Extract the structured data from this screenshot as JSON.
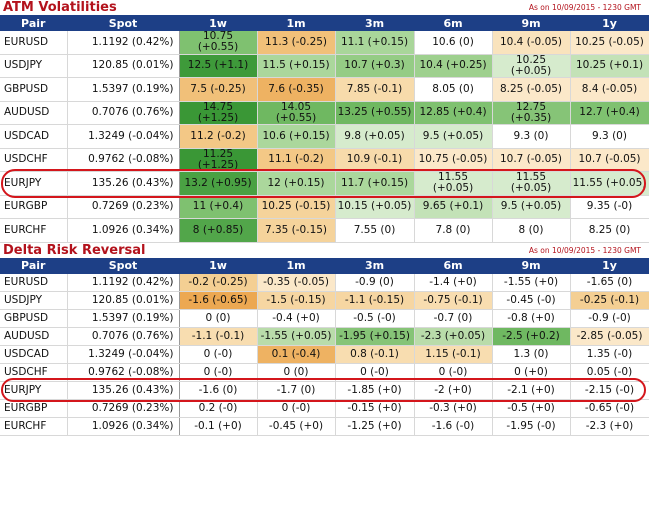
{
  "atm": {
    "title": "ATM Volatilities",
    "as_of": "As on 10/09/2015 - 1230 GMT",
    "headers": [
      "Pair",
      "Spot",
      "1w",
      "1m",
      "3m",
      "6m",
      "9m",
      "1y"
    ],
    "rows": [
      {
        "pair": "EURUSD",
        "spot": "1.1192 (0.42%)",
        "cells": [
          {
            "t": "10.75 (+0.55)",
            "c": "#7fc170"
          },
          {
            "t": "11.3 (-0.25)",
            "c": "#f1c079"
          },
          {
            "t": "11.1 (+0.15)",
            "c": "#a9d69a"
          },
          {
            "t": "10.6 (0)",
            "c": "#ffffff"
          },
          {
            "t": "10.4 (-0.05)",
            "c": "#f9e3bd"
          },
          {
            "t": "10.25 (-0.05)",
            "c": "#fbe8c9"
          }
        ]
      },
      {
        "pair": "USDJPY",
        "spot": "120.85 (0.01%)",
        "cells": [
          {
            "t": "12.5 (+1.1)",
            "c": "#3e9a3a"
          },
          {
            "t": "11.5 (+0.15)",
            "c": "#abd79c"
          },
          {
            "t": "10.7 (+0.3)",
            "c": "#95cc85"
          },
          {
            "t": "10.4 (+0.25)",
            "c": "#9ed08e"
          },
          {
            "t": "10.25 (+0.05)",
            "c": "#d6ebcd"
          },
          {
            "t": "10.25 (+0.1)",
            "c": "#c3e2b7"
          }
        ]
      },
      {
        "pair": "GBPUSD",
        "spot": "1.5397 (0.19%)",
        "cells": [
          {
            "t": "7.5 (-0.25)",
            "c": "#f1c079"
          },
          {
            "t": "7.6 (-0.35)",
            "c": "#eeb262"
          },
          {
            "t": "7.85 (-0.1)",
            "c": "#f7dbab"
          },
          {
            "t": "8.05 (0)",
            "c": "#ffffff"
          },
          {
            "t": "8.25 (-0.05)",
            "c": "#fbe8c9"
          },
          {
            "t": "8.4 (-0.05)",
            "c": "#fbe8c9"
          }
        ]
      },
      {
        "pair": "AUDUSD",
        "spot": "0.7076 (0.76%)",
        "cells": [
          {
            "t": "14.75 (+1.25)",
            "c": "#3a9736"
          },
          {
            "t": "14.05 (+0.55)",
            "c": "#6fb861"
          },
          {
            "t": "13.25 (+0.55)",
            "c": "#6fb861"
          },
          {
            "t": "12.85 (+0.4)",
            "c": "#7fc170"
          },
          {
            "t": "12.75 (+0.35)",
            "c": "#86c477"
          },
          {
            "t": "12.7 (+0.4)",
            "c": "#7fc170"
          }
        ]
      },
      {
        "pair": "USDCAD",
        "spot": "1.3249 (-0.04%)",
        "cells": [
          {
            "t": "11.2 (-0.2)",
            "c": "#f3c886"
          },
          {
            "t": "10.6 (+0.15)",
            "c": "#abd79c"
          },
          {
            "t": "9.8 (+0.05)",
            "c": "#d6ebcd"
          },
          {
            "t": "9.5 (+0.05)",
            "c": "#d6ebcd"
          },
          {
            "t": "9.3 (0)",
            "c": "#ffffff"
          },
          {
            "t": "9.3 (0)",
            "c": "#ffffff"
          }
        ]
      },
      {
        "pair": "USDCHF",
        "spot": "0.9762 (-0.08%)",
        "cells": [
          {
            "t": "11.25 (+1.25)",
            "c": "#3a9736"
          },
          {
            "t": "11.1 (-0.2)",
            "c": "#f3c886"
          },
          {
            "t": "10.9 (-0.1)",
            "c": "#f7dbab"
          },
          {
            "t": "10.75 (-0.05)",
            "c": "#fbe8c9"
          },
          {
            "t": "10.7 (-0.05)",
            "c": "#fbe8c9"
          },
          {
            "t": "10.7 (-0.05)",
            "c": "#fbe8c9"
          }
        ]
      },
      {
        "pair": "EURJPY",
        "spot": "135.26 (0.43%)",
        "cells": [
          {
            "t": "13.2 (+0.95)",
            "c": "#4aa143"
          },
          {
            "t": "12 (+0.15)",
            "c": "#abd79c"
          },
          {
            "t": "11.7 (+0.15)",
            "c": "#abd79c"
          },
          {
            "t": "11.55 (+0.05)",
            "c": "#d6ebcd"
          },
          {
            "t": "11.55 (+0.05)",
            "c": "#d6ebcd"
          },
          {
            "t": "11.55 (+0.05)",
            "c": "#d6ebcd"
          }
        ]
      },
      {
        "pair": "EURGBP",
        "spot": "0.7269 (0.23%)",
        "cells": [
          {
            "t": "11 (+0.4)",
            "c": "#7fc170"
          },
          {
            "t": "10.25 (-0.15)",
            "c": "#f5d39b"
          },
          {
            "t": "10.15 (+0.05)",
            "c": "#d6ebcd"
          },
          {
            "t": "9.65 (+0.1)",
            "c": "#c3e2b7"
          },
          {
            "t": "9.5 (+0.05)",
            "c": "#d6ebcd"
          },
          {
            "t": "9.35 (-0)",
            "c": "#ffffff"
          }
        ]
      },
      {
        "pair": "EURCHF",
        "spot": "1.0926 (0.34%)",
        "cells": [
          {
            "t": "8 (+0.85)",
            "c": "#52a64a"
          },
          {
            "t": "7.35 (-0.15)",
            "c": "#f5d39b"
          },
          {
            "t": "7.55 (0)",
            "c": "#ffffff"
          },
          {
            "t": "7.8 (0)",
            "c": "#ffffff"
          },
          {
            "t": "8 (0)",
            "c": "#ffffff"
          },
          {
            "t": "8.25 (0)",
            "c": "#ffffff"
          }
        ]
      }
    ]
  },
  "rr": {
    "title": "Delta Risk Reversal",
    "as_of": "As on 10/09/2015 - 1230 GMT",
    "headers": [
      "Pair",
      "Spot",
      "1w",
      "1m",
      "3m",
      "6m",
      "9m",
      "1y"
    ],
    "rows": [
      {
        "pair": "EURUSD",
        "spot": "1.1192 (0.42%)",
        "cells": [
          {
            "t": "-0.2 (-0.25)",
            "c": "#f4cf93"
          },
          {
            "t": "-0.35 (-0.05)",
            "c": "#fbe8c9"
          },
          {
            "t": "-0.9 (0)",
            "c": "#ffffff"
          },
          {
            "t": "-1.4 (+0)",
            "c": "#ffffff"
          },
          {
            "t": "-1.55 (+0)",
            "c": "#ffffff"
          },
          {
            "t": "-1.65 (0)",
            "c": "#ffffff"
          }
        ]
      },
      {
        "pair": "USDJPY",
        "spot": "120.85 (0.01%)",
        "cells": [
          {
            "t": "-1.6 (-0.65)",
            "c": "#eca852"
          },
          {
            "t": "-1.5 (-0.15)",
            "c": "#f6d6a2"
          },
          {
            "t": "-1.1 (-0.15)",
            "c": "#f6d6a2"
          },
          {
            "t": "-0.75 (-0.1)",
            "c": "#f8ddb0"
          },
          {
            "t": "-0.45 (-0)",
            "c": "#ffffff"
          },
          {
            "t": "-0.25 (-0.1)",
            "c": "#f4cf93"
          }
        ]
      },
      {
        "pair": "GBPUSD",
        "spot": "1.5397 (0.19%)",
        "cells": [
          {
            "t": "0 (0)",
            "c": "#ffffff"
          },
          {
            "t": "-0.4 (+0)",
            "c": "#ffffff"
          },
          {
            "t": "-0.5 (-0)",
            "c": "#ffffff"
          },
          {
            "t": "-0.7 (0)",
            "c": "#ffffff"
          },
          {
            "t": "-0.8 (+0)",
            "c": "#ffffff"
          },
          {
            "t": "-0.9 (-0)",
            "c": "#ffffff"
          }
        ]
      },
      {
        "pair": "AUDUSD",
        "spot": "0.7076 (0.76%)",
        "cells": [
          {
            "t": "-1.1 (-0.1)",
            "c": "#f8ddb0"
          },
          {
            "t": "-1.55 (+0.05)",
            "c": "#b9dcaa"
          },
          {
            "t": "-1.95 (+0.15)",
            "c": "#86c477"
          },
          {
            "t": "-2.3 (+0.05)",
            "c": "#b9dcaa"
          },
          {
            "t": "-2.5 (+0.2)",
            "c": "#6fb861"
          },
          {
            "t": "-2.85 (-0.05)",
            "c": "#fbe8c9"
          }
        ]
      },
      {
        "pair": "USDCAD",
        "spot": "1.3249 (-0.04%)",
        "cells": [
          {
            "t": "0 (-0)",
            "c": "#ffffff"
          },
          {
            "t": "0.1 (-0.4)",
            "c": "#eeb262"
          },
          {
            "t": "0.8 (-0.1)",
            "c": "#f8ddb0"
          },
          {
            "t": "1.15 (-0.1)",
            "c": "#f8ddb0"
          },
          {
            "t": "1.3 (0)",
            "c": "#ffffff"
          },
          {
            "t": "1.35 (-0)",
            "c": "#ffffff"
          }
        ]
      },
      {
        "pair": "USDCHF",
        "spot": "0.9762 (-0.08%)",
        "cells": [
          {
            "t": "0 (-0)",
            "c": "#ffffff"
          },
          {
            "t": "0 (0)",
            "c": "#ffffff"
          },
          {
            "t": "0 (-0)",
            "c": "#ffffff"
          },
          {
            "t": "0 (-0)",
            "c": "#ffffff"
          },
          {
            "t": "0 (+0)",
            "c": "#ffffff"
          },
          {
            "t": "0.05 (-0)",
            "c": "#ffffff"
          }
        ]
      },
      {
        "pair": "EURJPY",
        "spot": "135.26 (0.43%)",
        "cells": [
          {
            "t": "-1.6 (0)",
            "c": "#ffffff"
          },
          {
            "t": "-1.7 (0)",
            "c": "#ffffff"
          },
          {
            "t": "-1.85 (+0)",
            "c": "#ffffff"
          },
          {
            "t": "-2 (+0)",
            "c": "#ffffff"
          },
          {
            "t": "-2.1 (+0)",
            "c": "#ffffff"
          },
          {
            "t": "-2.15 (-0)",
            "c": "#ffffff"
          }
        ]
      },
      {
        "pair": "EURGBP",
        "spot": "0.7269 (0.23%)",
        "cells": [
          {
            "t": "0.2 (-0)",
            "c": "#ffffff"
          },
          {
            "t": "0 (-0)",
            "c": "#ffffff"
          },
          {
            "t": "-0.15 (+0)",
            "c": "#ffffff"
          },
          {
            "t": "-0.3 (+0)",
            "c": "#ffffff"
          },
          {
            "t": "-0.5 (+0)",
            "c": "#ffffff"
          },
          {
            "t": "-0.65 (-0)",
            "c": "#ffffff"
          }
        ]
      },
      {
        "pair": "EURCHF",
        "spot": "1.0926 (0.34%)",
        "cells": [
          {
            "t": "-0.1 (+0)",
            "c": "#ffffff"
          },
          {
            "t": "-0.45 (+0)",
            "c": "#ffffff"
          },
          {
            "t": "-1.25 (+0)",
            "c": "#ffffff"
          },
          {
            "t": "-1.6 (-0)",
            "c": "#ffffff"
          },
          {
            "t": "-1.95 (-0)",
            "c": "#ffffff"
          },
          {
            "t": "-2.3 (+0)",
            "c": "#ffffff"
          }
        ]
      }
    ]
  },
  "highlight_color": "#d4161c",
  "highlighted_pair": "EURJPY"
}
